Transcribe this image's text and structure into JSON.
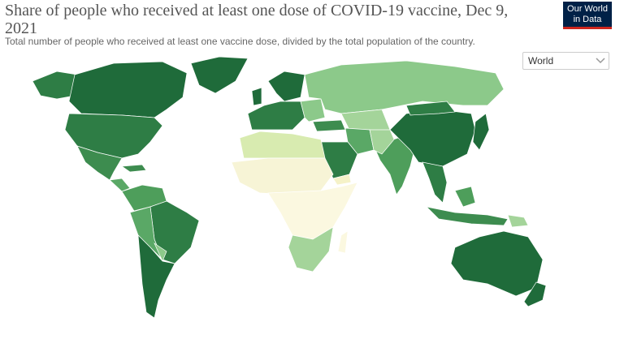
{
  "header": {
    "title": "Share of people who received at least one dose of COVID-19 vaccine, Dec 9, 2021",
    "subtitle": "Total number of people who received at least one vaccine dose, divided by the total population of the country.",
    "logo": [
      "Our World",
      "in Data"
    ]
  },
  "controls": {
    "region_select": "World"
  }
}
